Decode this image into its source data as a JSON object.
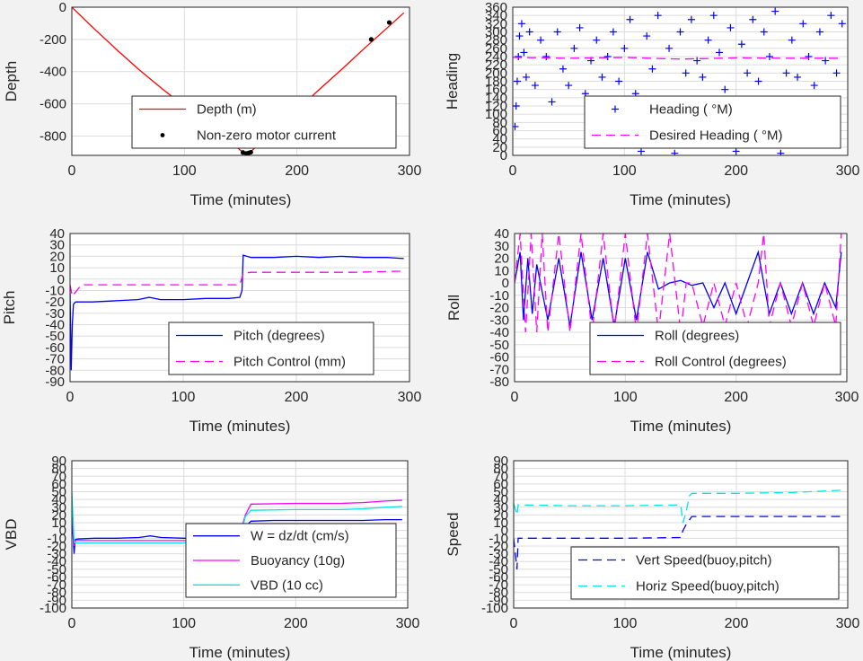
{
  "colors": {
    "background": "#f2f2f2",
    "axes_bg": "#ffffff",
    "grid": "#dcdcdc",
    "red": "#ff0000",
    "blue": "#0000ff",
    "magenta": "#ff00ff",
    "cyan": "#00e6e6",
    "black": "#000000"
  },
  "chart_data": [
    {
      "id": "depth",
      "type": "line",
      "xlabel": "Time (minutes)",
      "ylabel": "Depth",
      "xlim": [
        0,
        300
      ],
      "ylim": [
        -920,
        0
      ],
      "xticks": [
        0,
        100,
        200,
        300
      ],
      "yticks": [
        0,
        -200,
        -400,
        -600,
        -800
      ],
      "grid": true,
      "legend_position": "bottom-right",
      "series": [
        {
          "name": "Depth (m)",
          "style": "line",
          "color": "red",
          "x": [
            0,
            20,
            40,
            60,
            80,
            100,
            120,
            140,
            150,
            155,
            160,
            180,
            200,
            220,
            240,
            260,
            280,
            295
          ],
          "y": [
            0,
            -135,
            -265,
            -390,
            -505,
            -615,
            -720,
            -830,
            -890,
            -908,
            -890,
            -770,
            -640,
            -510,
            -385,
            -255,
            -130,
            -35
          ]
        },
        {
          "name": "Non-zero motor current",
          "style": "dot",
          "color": "black",
          "x": [
            152,
            155,
            157,
            159,
            266,
            282
          ],
          "y": [
            -902,
            -908,
            -905,
            -900,
            -200,
            -95
          ]
        }
      ]
    },
    {
      "id": "heading",
      "type": "scatter",
      "xlabel": "Time (minutes)",
      "ylabel": "Heading",
      "xlim": [
        0,
        300
      ],
      "ylim": [
        0,
        360
      ],
      "xticks": [
        0,
        100,
        200,
        300
      ],
      "yticks": [
        0,
        20,
        40,
        60,
        80,
        100,
        120,
        140,
        160,
        180,
        200,
        220,
        240,
        260,
        280,
        300,
        320,
        340,
        360
      ],
      "grid": true,
      "legend_position": "bottom-right",
      "series": [
        {
          "name": "Heading ( °M)",
          "style": "plus",
          "color": "blue",
          "x": [
            2,
            3,
            4,
            5,
            6,
            8,
            10,
            12,
            15,
            20,
            25,
            30,
            35,
            40,
            45,
            50,
            55,
            60,
            65,
            70,
            75,
            80,
            85,
            90,
            95,
            100,
            105,
            110,
            115,
            120,
            125,
            130,
            135,
            140,
            145,
            150,
            155,
            160,
            165,
            170,
            175,
            180,
            185,
            190,
            195,
            200,
            205,
            210,
            215,
            220,
            225,
            230,
            235,
            240,
            245,
            250,
            255,
            260,
            265,
            270,
            275,
            280,
            285,
            290,
            295
          ],
          "y": [
            70,
            120,
            180,
            240,
            290,
            320,
            250,
            190,
            300,
            170,
            280,
            240,
            130,
            300,
            210,
            170,
            260,
            310,
            150,
            230,
            280,
            190,
            240,
            300,
            180,
            260,
            330,
            150,
            10,
            290,
            210,
            340,
            120,
            260,
            5,
            300,
            200,
            330,
            230,
            190,
            280,
            340,
            250,
            160,
            310,
            10,
            270,
            200,
            330,
            180,
            300,
            240,
            350,
            5,
            200,
            280,
            190,
            320,
            240,
            170,
            300,
            230,
            340,
            200,
            320
          ]
        },
        {
          "name": "Desired Heading ( °M)",
          "style": "dash",
          "color": "magenta",
          "x": [
            0,
            50,
            100,
            150,
            200,
            250,
            295
          ],
          "y": [
            238,
            236,
            238,
            234,
            237,
            236,
            236
          ]
        }
      ]
    },
    {
      "id": "pitch",
      "type": "line",
      "xlabel": "Time (minutes)",
      "ylabel": "Pitch",
      "xlim": [
        0,
        300
      ],
      "ylim": [
        -90,
        40
      ],
      "xticks": [
        0,
        100,
        200,
        300
      ],
      "yticks": [
        40,
        30,
        20,
        10,
        0,
        -10,
        -20,
        -30,
        -40,
        -50,
        -60,
        -70,
        -80,
        -90
      ],
      "grid": true,
      "legend_position": "bottom-right",
      "series": [
        {
          "name": "Pitch (degrees)",
          "style": "line",
          "color": "blue",
          "x": [
            0,
            1,
            2,
            3,
            5,
            20,
            40,
            60,
            70,
            80,
            100,
            120,
            140,
            150,
            152,
            153,
            160,
            180,
            200,
            220,
            240,
            260,
            280,
            295
          ],
          "y": [
            -10,
            -80,
            -40,
            -22,
            -20,
            -20,
            -19,
            -18,
            -16,
            -18,
            -18,
            -17,
            -17,
            -16,
            -10,
            21,
            19,
            19,
            20,
            19,
            20,
            19,
            19,
            18
          ]
        },
        {
          "name": "Pitch Control (mm)",
          "style": "dash",
          "color": "magenta",
          "x": [
            0,
            2,
            10,
            50,
            100,
            150,
            153,
            160,
            200,
            250,
            295
          ],
          "y": [
            -5,
            -15,
            -5,
            -5,
            -5,
            -5,
            5,
            6,
            6,
            6,
            7
          ]
        }
      ]
    },
    {
      "id": "roll",
      "type": "line",
      "xlabel": "Time (minutes)",
      "ylabel": "Roll",
      "xlim": [
        0,
        300
      ],
      "ylim": [
        -80,
        40
      ],
      "xticks": [
        0,
        100,
        200,
        300
      ],
      "yticks": [
        40,
        30,
        20,
        10,
        0,
        -10,
        -20,
        -30,
        -40,
        -50,
        -60,
        -70,
        -80
      ],
      "grid": true,
      "legend_position": "bottom-right",
      "series": [
        {
          "name": "Roll (degrees)",
          "style": "line",
          "color": "blue",
          "x": [
            0,
            5,
            8,
            12,
            16,
            20,
            30,
            40,
            50,
            60,
            70,
            80,
            90,
            100,
            110,
            120,
            130,
            140,
            150,
            160,
            170,
            180,
            190,
            200,
            210,
            220,
            230,
            240,
            250,
            260,
            270,
            280,
            290,
            295
          ],
          "y": [
            0,
            25,
            -30,
            20,
            -25,
            15,
            -30,
            20,
            -35,
            25,
            -30,
            20,
            -35,
            20,
            -30,
            25,
            -5,
            0,
            2,
            -2,
            0,
            -20,
            0,
            -25,
            0,
            25,
            -25,
            0,
            -25,
            0,
            -25,
            0,
            -20,
            25
          ]
        },
        {
          "name": "Roll Control (degrees)",
          "style": "dash",
          "color": "magenta",
          "x": [
            0,
            5,
            10,
            15,
            20,
            25,
            30,
            40,
            50,
            60,
            70,
            80,
            90,
            100,
            110,
            120,
            130,
            140,
            150,
            155,
            160,
            170,
            180,
            190,
            200,
            210,
            220,
            225,
            230,
            240,
            250,
            260,
            270,
            280,
            290,
            295
          ],
          "y": [
            0,
            40,
            -40,
            40,
            -40,
            40,
            -40,
            40,
            -40,
            40,
            -40,
            40,
            -40,
            40,
            -40,
            40,
            -40,
            40,
            -40,
            0,
            0,
            -35,
            0,
            -35,
            0,
            -35,
            0,
            40,
            -35,
            0,
            -35,
            0,
            -35,
            0,
            -35,
            40
          ]
        }
      ]
    },
    {
      "id": "vbd",
      "type": "line",
      "xlabel": "Time (minutes)",
      "ylabel": "VBD",
      "xlim": [
        0,
        300
      ],
      "ylim": [
        -100,
        90
      ],
      "xticks": [
        0,
        100,
        200,
        300
      ],
      "yticks": [
        90,
        80,
        70,
        60,
        50,
        40,
        30,
        20,
        10,
        0,
        -10,
        -20,
        -30,
        -40,
        -50,
        -60,
        -70,
        -80,
        -90,
        -100
      ],
      "ytick_labels": [
        "90",
        "80",
        "70",
        "60",
        "50",
        "40",
        "30",
        "20",
        "10",
        "0",
        "-10",
        "-20",
        "-30",
        "-40",
        "-50",
        "-60",
        "-70",
        "-80",
        "-90",
        "-100"
      ],
      "grid": true,
      "legend_position": "bottom-right",
      "series": [
        {
          "name": "W = dz/dt (cm/s)",
          "style": "line",
          "color": "blue",
          "x": [
            0,
            2,
            3,
            5,
            20,
            40,
            60,
            70,
            80,
            100,
            120,
            140,
            150,
            155,
            160,
            180,
            200,
            220,
            240,
            260,
            280,
            295
          ],
          "y": [
            20,
            -30,
            -12,
            -11,
            -10,
            -10,
            -9,
            -7,
            -9,
            -10,
            -10,
            -9,
            -8,
            5,
            12,
            13,
            13,
            13,
            13,
            13,
            14,
            14
          ]
        },
        {
          "name": "Buoyancy (10g)",
          "style": "line",
          "color": "magenta",
          "x": [
            0,
            2,
            3,
            5,
            50,
            100,
            150,
            152,
            155,
            160,
            200,
            240,
            260,
            280,
            295
          ],
          "y": [
            30,
            -20,
            -13,
            -13,
            -13,
            -13,
            -12,
            5,
            20,
            34,
            35,
            35,
            36,
            38,
            39
          ]
        },
        {
          "name": "VBD (10 cc)",
          "style": "line",
          "color": "cyan",
          "x": [
            0,
            2,
            3,
            5,
            50,
            100,
            150,
            152,
            155,
            160,
            200,
            240,
            260,
            280,
            295
          ],
          "y": [
            50,
            -15,
            -16,
            -16,
            -16,
            -16,
            -15,
            0,
            18,
            26,
            27,
            27,
            28,
            30,
            31
          ]
        }
      ]
    },
    {
      "id": "speed",
      "type": "line",
      "xlabel": "Time (minutes)",
      "ylabel": "Speed",
      "xlim": [
        0,
        300
      ],
      "ylim": [
        -100,
        90
      ],
      "xticks": [
        0,
        100,
        200,
        300
      ],
      "yticks": [
        90,
        80,
        70,
        60,
        50,
        40,
        30,
        20,
        10,
        0,
        -10,
        -20,
        -30,
        -40,
        -50,
        -60,
        -70,
        -80,
        -90,
        -100
      ],
      "ytick_labels": [
        "90",
        "80",
        "70",
        "60",
        "50",
        "40",
        "30",
        "20",
        "10",
        "0",
        "-10",
        "-20",
        "-30",
        "-40",
        "-50",
        "-60",
        "-70",
        "-80",
        "-90",
        "-100"
      ],
      "grid": true,
      "legend_position": "bottom-right",
      "series": [
        {
          "name": "Vert Speed(buoy,pitch)",
          "style": "dash",
          "color": "blue",
          "x": [
            0,
            3,
            4,
            6,
            50,
            100,
            150,
            152,
            155,
            160,
            200,
            250,
            295
          ],
          "y": [
            -10,
            -50,
            -10,
            -10,
            -10,
            -10,
            -9,
            0,
            8,
            18,
            18,
            18,
            18
          ]
        },
        {
          "name": "Horiz Speed(buoy,pitch)",
          "style": "dash",
          "color": "cyan",
          "x": [
            0,
            3,
            4,
            6,
            50,
            100,
            150,
            152,
            155,
            158,
            160,
            200,
            250,
            295
          ],
          "y": [
            35,
            20,
            33,
            33,
            32,
            32,
            33,
            10,
            25,
            45,
            48,
            48,
            49,
            52
          ]
        }
      ]
    }
  ]
}
